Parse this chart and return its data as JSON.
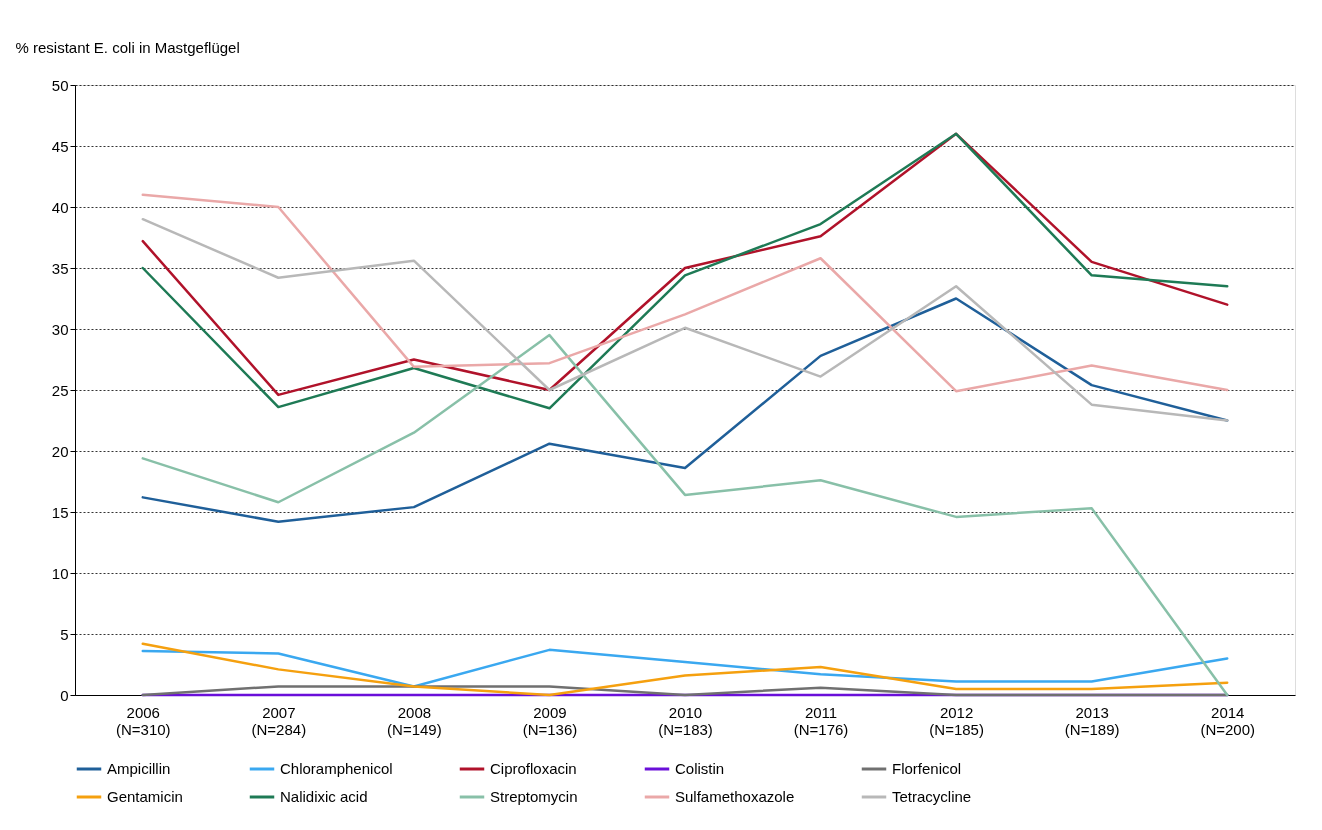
{
  "chart_data": {
    "type": "line",
    "ylabel": "% resistant E. coli in Mastgeflügel",
    "categories": [
      "2006\n(N=310)",
      "2007\n(N=284)",
      "2008\n(N=149)",
      "2009\n(N=136)",
      "2010\n(N=183)",
      "2011\n(N=176)",
      "2012\n(N=185)",
      "2013\n(N=189)",
      "2014\n(N=200)"
    ],
    "ylim": [
      0,
      50
    ],
    "yticks": [
      0,
      5,
      10,
      15,
      20,
      25,
      30,
      35,
      40,
      45,
      50
    ],
    "grid": "y",
    "legend": "bottom",
    "marker": "none",
    "line_style": "solid",
    "series": [
      {
        "name": "Ampicillin",
        "color": "#1f5f99",
        "values": [
          16.2,
          14.2,
          15.4,
          20.6,
          18.6,
          27.8,
          32.5,
          25.4,
          22.5
        ]
      },
      {
        "name": "Chloramphenicol",
        "color": "#3aa8f0",
        "values": [
          3.6,
          3.4,
          0.7,
          3.7,
          2.7,
          1.7,
          1.1,
          1.1,
          3.0
        ]
      },
      {
        "name": "Ciprofloxacin",
        "color": "#b0122a",
        "values": [
          37.2,
          24.6,
          27.5,
          25.0,
          35.0,
          37.6,
          46.0,
          35.5,
          32.0
        ]
      },
      {
        "name": "Colistin",
        "color": "#6a0fd9",
        "values": [
          0,
          0,
          0,
          0,
          0,
          0,
          0,
          0,
          0
        ]
      },
      {
        "name": "Florfenicol",
        "color": "#707070",
        "values": [
          0,
          0.7,
          0.7,
          0.7,
          0,
          0.6,
          0,
          0,
          0
        ]
      },
      {
        "name": "Gentamicin",
        "color": "#f5a00f",
        "values": [
          4.2,
          2.1,
          0.7,
          0,
          1.6,
          2.3,
          0.5,
          0.5,
          1.0
        ]
      },
      {
        "name": "Nalidixic acid",
        "color": "#1e7a55",
        "values": [
          35.0,
          23.6,
          26.8,
          23.5,
          34.4,
          38.6,
          46.0,
          34.4,
          33.5
        ]
      },
      {
        "name": "Streptomycin",
        "color": "#88c0a8",
        "values": [
          19.4,
          15.8,
          21.5,
          29.5,
          16.4,
          17.6,
          14.6,
          15.3,
          0
        ]
      },
      {
        "name": "Sulfamethoxazole",
        "color": "#eaa8a8",
        "values": [
          41.0,
          40.0,
          26.9,
          27.2,
          31.2,
          35.8,
          24.9,
          27.0,
          25.0
        ]
      },
      {
        "name": "Tetracycline",
        "color": "#b8b8b8",
        "values": [
          39.0,
          34.2,
          35.6,
          25.0,
          30.1,
          26.1,
          33.5,
          23.8,
          22.5
        ]
      }
    ]
  }
}
